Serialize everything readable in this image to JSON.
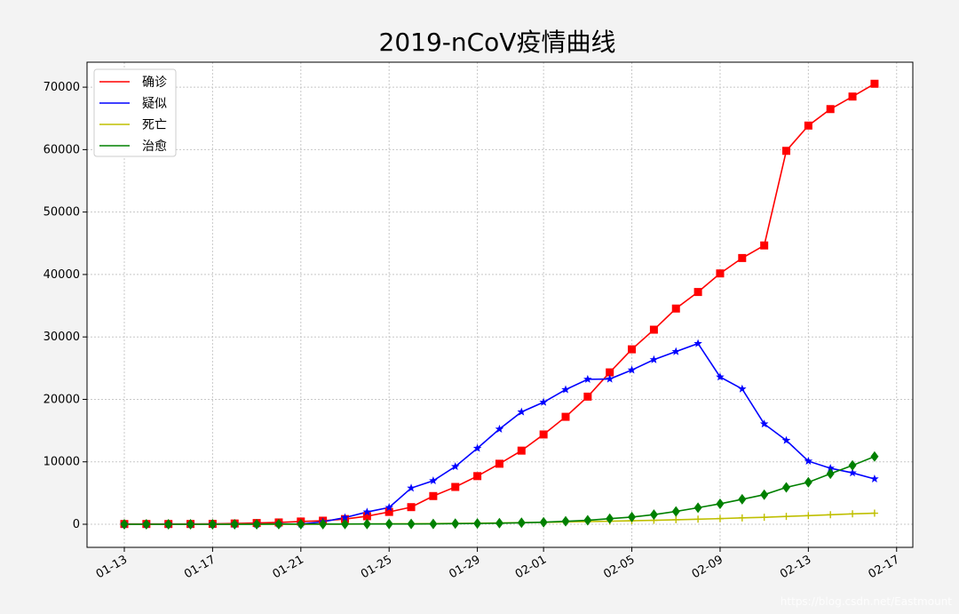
{
  "chart_data": {
    "type": "line",
    "title": "2019-nCoV疫情曲线",
    "xlabel": "",
    "ylabel": "",
    "x_start": "01-13",
    "x": [
      "01-13",
      "01-14",
      "01-15",
      "01-16",
      "01-17",
      "01-18",
      "01-19",
      "01-20",
      "01-21",
      "01-22",
      "01-23",
      "01-24",
      "01-25",
      "01-26",
      "01-27",
      "01-28",
      "01-29",
      "01-30",
      "01-31",
      "02-01",
      "02-02",
      "02-03",
      "02-04",
      "02-05",
      "02-06",
      "02-07",
      "02-08",
      "02-09",
      "02-10",
      "02-11",
      "02-12",
      "02-13",
      "02-14",
      "02-15",
      "02-16"
    ],
    "x_ticks": [
      "01-13",
      "01-17",
      "01-21",
      "01-25",
      "01-29",
      "02-01",
      "02-05",
      "02-09",
      "02-13",
      "02-17"
    ],
    "ylim": [
      -3700,
      74000
    ],
    "y_ticks": [
      0,
      10000,
      20000,
      30000,
      40000,
      50000,
      60000,
      70000
    ],
    "grid": true,
    "legend_position": "top-left",
    "series": [
      {
        "name": "确诊",
        "color": "#ff0000",
        "marker": "square",
        "values": [
          41,
          41,
          41,
          45,
          62,
          121,
          198,
          291,
          440,
          571,
          830,
          1287,
          1975,
          2744,
          4515,
          5974,
          7711,
          9692,
          11791,
          14380,
          17205,
          20438,
          24324,
          28018,
          31161,
          34546,
          37198,
          40171,
          42638,
          44653,
          59804,
          63851,
          66492,
          68500,
          70548
        ]
      },
      {
        "name": "疑似",
        "color": "#0000ff",
        "marker": "star",
        "values": [
          0,
          0,
          0,
          0,
          0,
          0,
          0,
          54,
          37,
          393,
          1072,
          1965,
          2684,
          5794,
          6973,
          9239,
          12167,
          15238,
          17988,
          19544,
          21558,
          23214,
          23260,
          24702,
          26359,
          27657,
          28942,
          23589,
          21675,
          16067,
          13435,
          10109,
          8969,
          8228,
          7264
        ]
      },
      {
        "name": "死亡",
        "color": "#bfbf00",
        "marker": "plus",
        "values": [
          1,
          1,
          1,
          2,
          2,
          3,
          3,
          6,
          9,
          17,
          25,
          41,
          56,
          80,
          106,
          132,
          170,
          213,
          259,
          304,
          361,
          425,
          490,
          563,
          636,
          722,
          811,
          908,
          1016,
          1113,
          1259,
          1380,
          1523,
          1665,
          1770
        ]
      },
      {
        "name": "治愈",
        "color": "#008000",
        "marker": "diamond",
        "values": [
          0,
          0,
          0,
          0,
          0,
          0,
          0,
          25,
          25,
          25,
          34,
          38,
          49,
          51,
          60,
          103,
          124,
          171,
          243,
          328,
          475,
          632,
          892,
          1153,
          1540,
          2050,
          2649,
          3281,
          3996,
          4740,
          5911,
          6723,
          8096,
          9419,
          10844
        ]
      }
    ],
    "watermark": "https://blog.csdn.net/Eastmount"
  }
}
